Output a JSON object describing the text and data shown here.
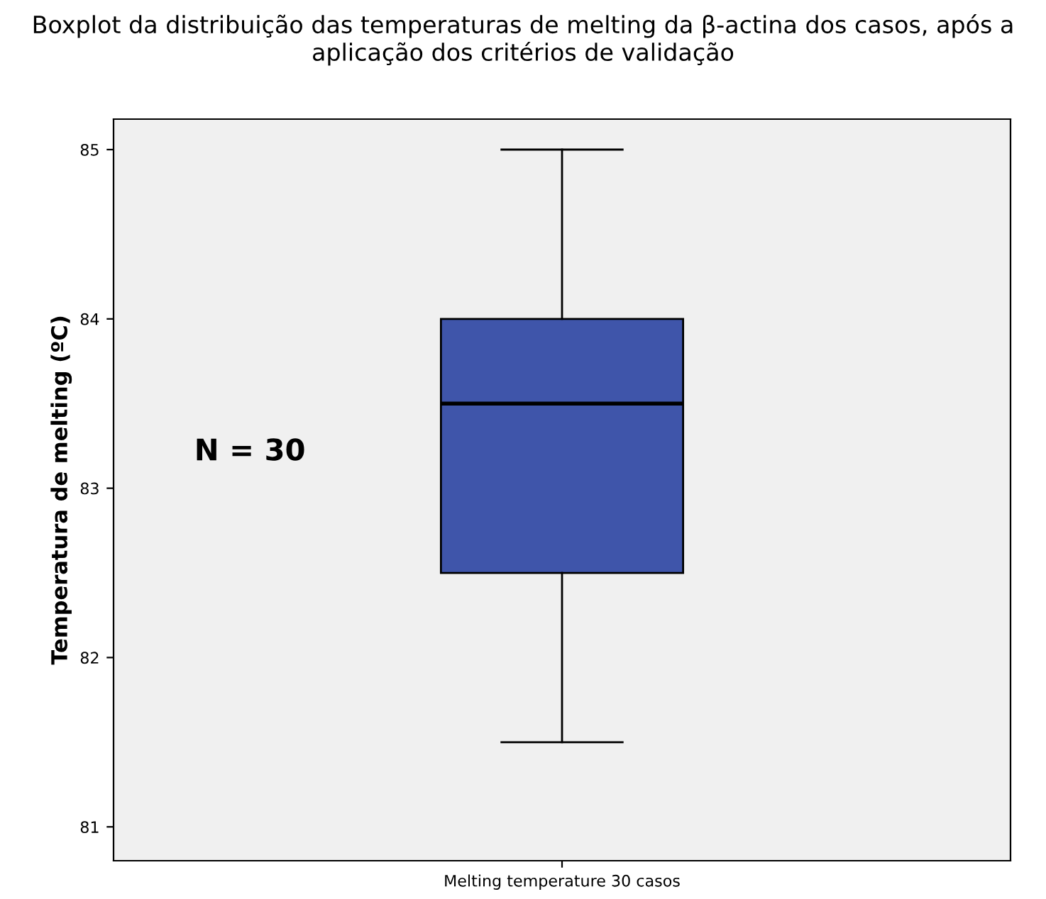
{
  "chart_data": {
    "type": "box",
    "title": "Boxplot da distribuição das temperaturas de melting da β-actina dos casos, após a aplicação dos critérios de validação",
    "ylabel": "Temperatura de melting (ºC)",
    "categories": [
      "Melting temperature 30 casos"
    ],
    "boxes": [
      {
        "low": 81.5,
        "q1": 82.5,
        "median": 83.5,
        "q3": 84,
        "high": 85
      }
    ],
    "color": "#3f55aa",
    "ylim": [
      80.8,
      85.18
    ],
    "yticks": [
      81,
      82,
      83,
      84,
      85
    ],
    "annotations": [
      "N = 30"
    ],
    "grid": false
  }
}
